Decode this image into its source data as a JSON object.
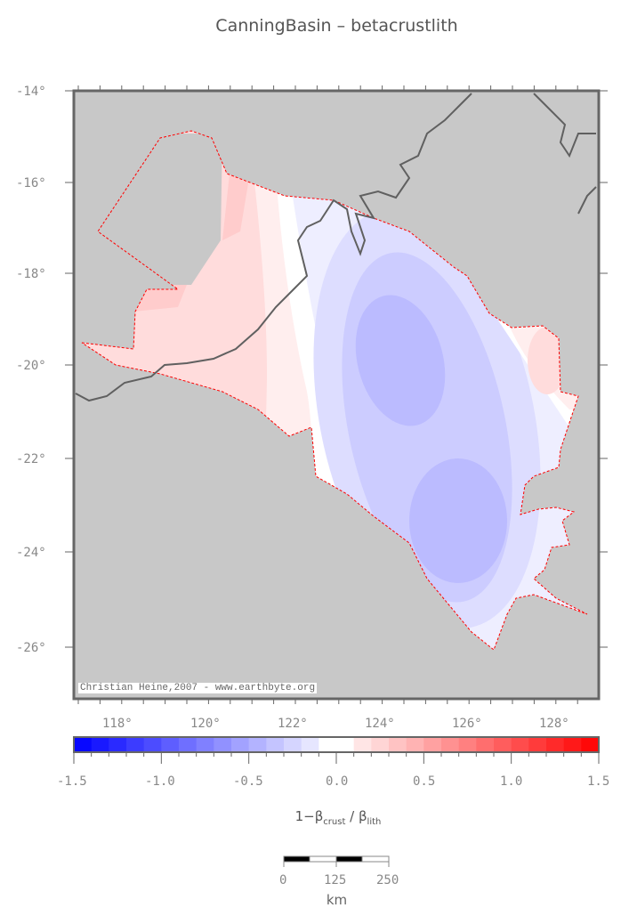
{
  "title": "CanningBasin – betacrustlith",
  "credit": "Christian Heine,2007 - www.earthbyte.org",
  "lat_labels": [
    "-14°",
    "-16°",
    "-18°",
    "-20°",
    "-22°",
    "-24°",
    "-26°"
  ],
  "lon_labels": [
    "118°",
    "120°",
    "122°",
    "124°",
    "126°",
    "128°"
  ],
  "colorbar": {
    "ticks": [
      "-1.5",
      "-1.0",
      "-0.5",
      "0.0",
      "0.5",
      "1.0",
      "1.5"
    ],
    "min": -1.5,
    "max": 1.5,
    "step": 0.1,
    "label_main": "1−β",
    "label_sub1": "crust",
    "label_mid": " / β",
    "label_sub2": "lith",
    "low_color": "#0000ff",
    "mid_color": "#ffffff",
    "high_color": "#ff0000"
  },
  "scalebar": {
    "ticks": [
      "0",
      "125",
      "250"
    ],
    "unit": "km"
  },
  "colors": {
    "land": "#c8c8c8",
    "coast": "#606060",
    "outline": "#ff0000"
  }
}
